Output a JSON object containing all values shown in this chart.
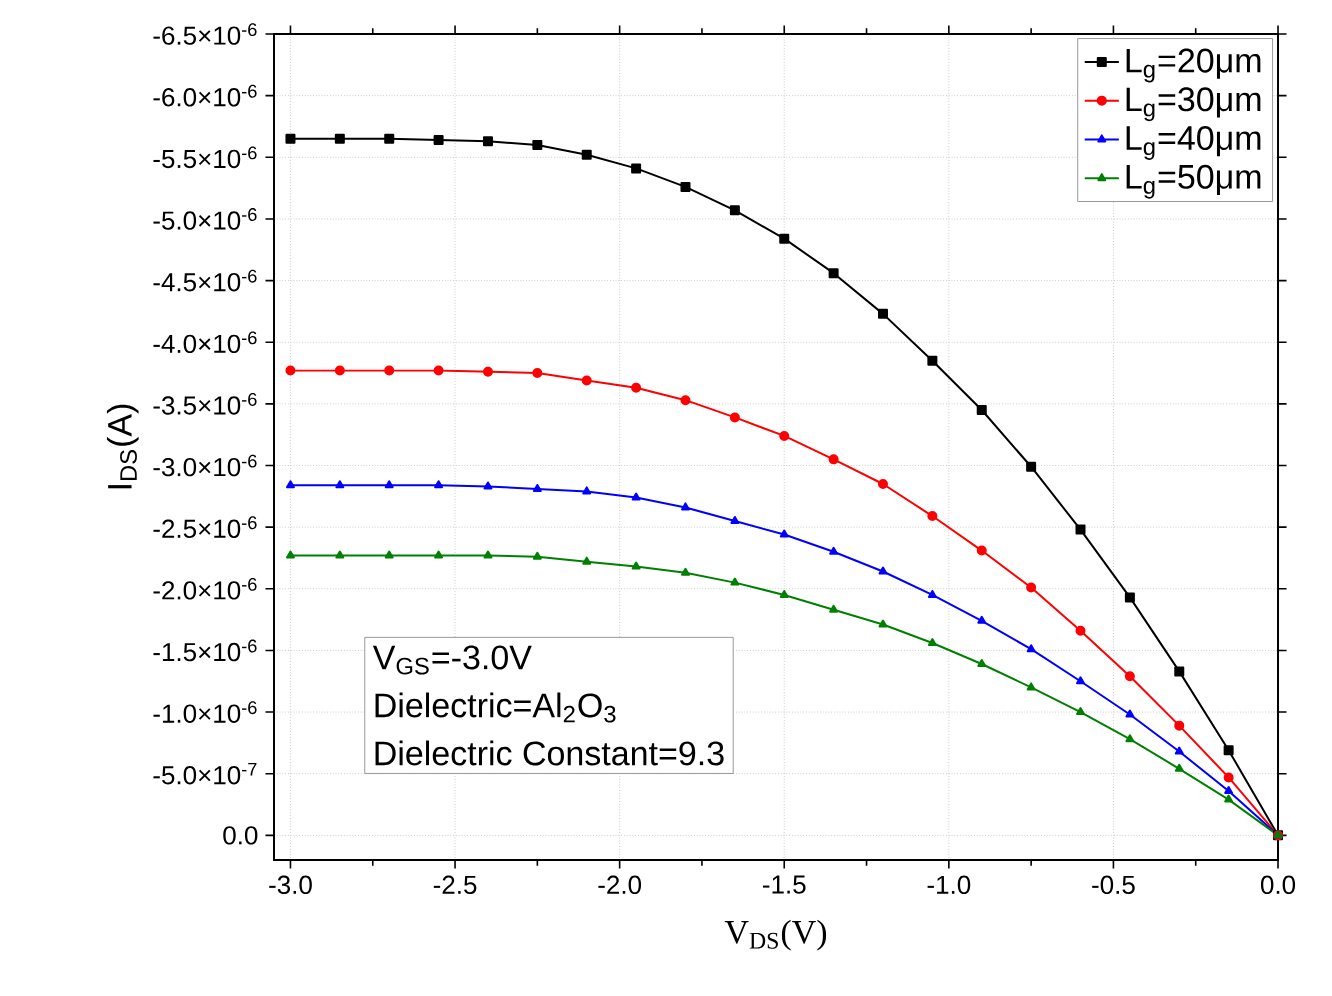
{
  "chart_data": {
    "type": "line",
    "xlabel": "V$_{DS}$(V)",
    "ylabel": "I$_{DS}$(A)",
    "x": [
      -3.0,
      -2.85,
      -2.7,
      -2.55,
      -2.4,
      -2.25,
      -2.1,
      -1.95,
      -1.8,
      -1.65,
      -1.5,
      -1.35,
      -1.2,
      -1.05,
      -0.9,
      -0.75,
      -0.6,
      -0.45,
      -0.3,
      -0.15,
      0.0
    ],
    "series": [
      {
        "name": "L$_{g}$=20μm",
        "color": "#000000",
        "marker": "square",
        "values": [
          -5.65e-06,
          -5.65e-06,
          -5.65e-06,
          -5.64e-06,
          -5.63e-06,
          -5.6e-06,
          -5.52e-06,
          -5.41e-06,
          -5.26e-06,
          -5.07e-06,
          -4.84e-06,
          -4.56e-06,
          -4.23e-06,
          -3.85e-06,
          -3.45e-06,
          -2.99e-06,
          -2.48e-06,
          -1.93e-06,
          -1.33e-06,
          -6.9e-07,
          0.0
        ]
      },
      {
        "name": "L$_{g}$=30μm",
        "color": "#ff0000",
        "marker": "circle",
        "values": [
          -3.77e-06,
          -3.77e-06,
          -3.77e-06,
          -3.77e-06,
          -3.76e-06,
          -3.75e-06,
          -3.69e-06,
          -3.63e-06,
          -3.53e-06,
          -3.39e-06,
          -3.24e-06,
          -3.05e-06,
          -2.85e-06,
          -2.59e-06,
          -2.31e-06,
          -2.01e-06,
          -1.66e-06,
          -1.29e-06,
          -8.9e-07,
          -4.7e-07,
          0.0
        ]
      },
      {
        "name": "L$_{g}$=40μm",
        "color": "#0000ff",
        "marker": "triangle",
        "values": [
          -2.84e-06,
          -2.84e-06,
          -2.84e-06,
          -2.84e-06,
          -2.83e-06,
          -2.81e-06,
          -2.79e-06,
          -2.74e-06,
          -2.66e-06,
          -2.55e-06,
          -2.44e-06,
          -2.3e-06,
          -2.14e-06,
          -1.95e-06,
          -1.74e-06,
          -1.51e-06,
          -1.25e-06,
          -9.8e-07,
          -6.8e-07,
          -3.6e-07,
          0.0
        ]
      },
      {
        "name": "L$_{g}$=50μm",
        "color": "#008000",
        "marker": "triangle",
        "values": [
          -2.27e-06,
          -2.27e-06,
          -2.27e-06,
          -2.27e-06,
          -2.27e-06,
          -2.26e-06,
          -2.22e-06,
          -2.18e-06,
          -2.13e-06,
          -2.05e-06,
          -1.95e-06,
          -1.83e-06,
          -1.71e-06,
          -1.56e-06,
          -1.39e-06,
          -1.2e-06,
          -1e-06,
          -7.8e-07,
          -5.4e-07,
          -2.9e-07,
          0.0
        ]
      }
    ],
    "xlim": [
      -3.05,
      0.0
    ],
    "xticks": [
      {
        "value": -3.0,
        "label": "-3.0"
      },
      {
        "value": -2.5,
        "label": "-2.5"
      },
      {
        "value": -2.0,
        "label": "-2.0"
      },
      {
        "value": -1.5,
        "label": "-1.5"
      },
      {
        "value": -1.0,
        "label": "-1.0"
      },
      {
        "value": -0.5,
        "label": "-0.5"
      },
      {
        "value": 0.0,
        "label": "0.0"
      }
    ],
    "ylim": [
      2e-07,
      -6.5e-06
    ],
    "yticks": [
      {
        "value": -6.5e-06,
        "label": "-6.5×10$^{-6}$"
      },
      {
        "value": -6e-06,
        "label": "-6.0×10$^{-6}$"
      },
      {
        "value": -5.5e-06,
        "label": "-5.5×10$^{-6}$"
      },
      {
        "value": -5e-06,
        "label": "-5.0×10$^{-6}$"
      },
      {
        "value": -4.5e-06,
        "label": "-4.5×10$^{-6}$"
      },
      {
        "value": -4e-06,
        "label": "-4.0×10$^{-6}$"
      },
      {
        "value": -3.5e-06,
        "label": "-3.5×10$^{-6}$"
      },
      {
        "value": -3e-06,
        "label": "-3.0×10$^{-6}$"
      },
      {
        "value": -2.5e-06,
        "label": "-2.5×10$^{-6}$"
      },
      {
        "value": -2e-06,
        "label": "-2.0×10$^{-6}$"
      },
      {
        "value": -1.5e-06,
        "label": "-1.5×10$^{-6}$"
      },
      {
        "value": -1e-06,
        "label": "-1.0×10$^{-6}$"
      },
      {
        "value": -5e-07,
        "label": "-5.0×10$^{-7}$"
      },
      {
        "value": 0.0,
        "label": "0.0"
      }
    ],
    "grid": true,
    "legend": "top right",
    "line_style": "solid",
    "annotations": [
      "V$_{GS}$=-3.0V",
      "Dielectric=Al$_{2}$O$_{3}$",
      "Dielectric Constant=9.3"
    ]
  }
}
